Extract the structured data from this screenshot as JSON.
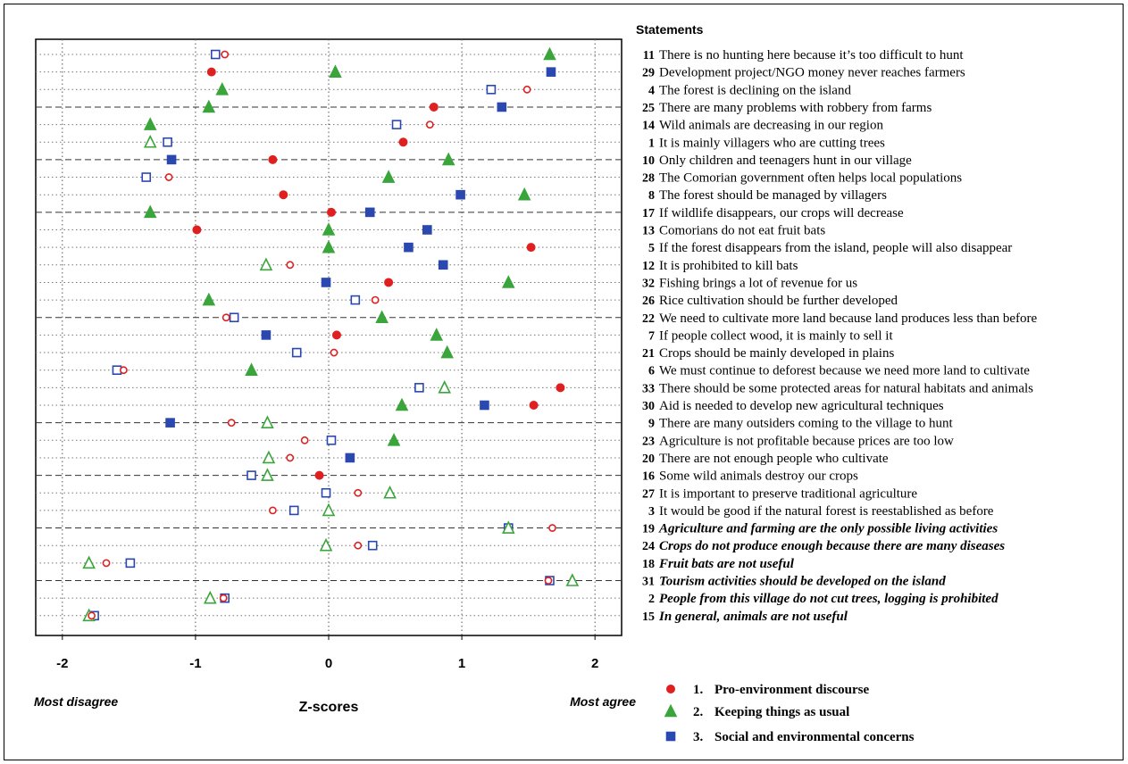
{
  "chart_data": {
    "type": "scatter",
    "xlabel": "Z-scores",
    "xlim": [
      -2.2,
      2.2
    ],
    "xticks": [
      -2,
      -1,
      0,
      1,
      2
    ],
    "xtick_labels": [
      "-2",
      "-1",
      "0",
      "1",
      "2"
    ],
    "axis_end_labels": {
      "left": "Most disagree",
      "right": "Most agree"
    },
    "statements_header": "Statements",
    "grid": "dotted vertical and horizontal lines; dashed separator lines",
    "legend_position": "bottom-right",
    "series": [
      {
        "number": "1.",
        "name": "Pro-environment discourse",
        "color": "#e02020",
        "marker": "circle"
      },
      {
        "number": "2.",
        "name": "Keeping things as usual",
        "color": "#3aa53a",
        "marker": "triangle"
      },
      {
        "number": "3.",
        "name": "Social and environmental concerns",
        "color": "#2a48b0",
        "marker": "square"
      }
    ],
    "statements": [
      {
        "number": "11",
        "text": "There is no hunting here because it’s too difficult to hunt",
        "emph": false,
        "values": [
          -0.78,
          1.66,
          -0.85
        ],
        "filled": [
          false,
          true,
          false
        ]
      },
      {
        "number": "29",
        "text": "Development project/NGO money never reaches farmers",
        "emph": false,
        "values": [
          -0.88,
          0.05,
          1.67
        ],
        "filled": [
          true,
          true,
          true
        ]
      },
      {
        "number": "4",
        "text": "The forest is declining on the island",
        "emph": false,
        "values": [
          1.49,
          -0.8,
          1.22
        ],
        "filled": [
          false,
          true,
          false
        ]
      },
      {
        "number": "25",
        "text": "There are many problems with robbery from farms",
        "emph": false,
        "values": [
          0.79,
          -0.9,
          1.3
        ],
        "filled": [
          true,
          true,
          true
        ]
      },
      {
        "number": "14",
        "text": "Wild animals are decreasing in our region",
        "emph": false,
        "values": [
          0.76,
          -1.34,
          0.51
        ],
        "filled": [
          false,
          true,
          false
        ]
      },
      {
        "number": "1",
        "text": "It is mainly villagers who are cutting trees",
        "emph": false,
        "values": [
          0.56,
          -1.34,
          -1.21
        ],
        "filled": [
          true,
          false,
          false
        ]
      },
      {
        "number": "10",
        "text": "Only children and teenagers hunt in our village",
        "emph": false,
        "values": [
          -0.42,
          0.9,
          -1.18
        ],
        "filled": [
          true,
          true,
          true
        ]
      },
      {
        "number": "28",
        "text": "The Comorian government often helps local populations",
        "emph": false,
        "values": [
          -1.2,
          0.45,
          -1.37
        ],
        "filled": [
          false,
          true,
          false
        ]
      },
      {
        "number": "8",
        "text": "The forest should be managed by villagers",
        "emph": false,
        "values": [
          -0.34,
          1.47,
          0.99
        ],
        "filled": [
          true,
          true,
          true
        ]
      },
      {
        "number": "17",
        "text": "If wildlife disappears, our crops will decrease",
        "emph": false,
        "values": [
          0.02,
          -1.34,
          0.31
        ],
        "filled": [
          true,
          true,
          true
        ]
      },
      {
        "number": "13",
        "text": "Comorians do not eat fruit bats",
        "emph": false,
        "values": [
          -0.99,
          0.0,
          0.74
        ],
        "filled": [
          true,
          true,
          true
        ]
      },
      {
        "number": "5",
        "text": "If the forest disappears from the island, people will also disappear",
        "emph": false,
        "values": [
          1.52,
          0.0,
          0.6
        ],
        "filled": [
          true,
          true,
          true
        ]
      },
      {
        "number": "12",
        "text": "It is prohibited to kill bats",
        "emph": false,
        "values": [
          -0.29,
          -0.47,
          0.86
        ],
        "filled": [
          false,
          false,
          true
        ]
      },
      {
        "number": "32",
        "text": "Fishing brings a lot of revenue for us",
        "emph": false,
        "values": [
          0.45,
          1.35,
          -0.02
        ],
        "filled": [
          true,
          true,
          true
        ]
      },
      {
        "number": "26",
        "text": "Rice cultivation should be further developed",
        "emph": false,
        "values": [
          0.35,
          -0.9,
          0.2
        ],
        "filled": [
          false,
          true,
          false
        ]
      },
      {
        "number": "22",
        "text": "We need to cultivate more land because land produces less than before",
        "emph": false,
        "values": [
          -0.77,
          0.4,
          -0.71
        ],
        "filled": [
          false,
          true,
          false
        ]
      },
      {
        "number": "7",
        "text": "If people collect wood, it is mainly to sell it",
        "emph": false,
        "values": [
          0.06,
          0.81,
          -0.47
        ],
        "filled": [
          true,
          true,
          true
        ]
      },
      {
        "number": "21",
        "text": "Crops should be mainly developed in plains",
        "emph": false,
        "values": [
          0.04,
          0.89,
          -0.24
        ],
        "filled": [
          false,
          true,
          false
        ]
      },
      {
        "number": "6",
        "text": "We must continue to deforest because we need more land to cultivate",
        "emph": false,
        "values": [
          -1.54,
          -0.58,
          -1.59
        ],
        "filled": [
          false,
          true,
          false
        ]
      },
      {
        "number": "33",
        "text": "There should be some protected areas for natural habitats and animals",
        "emph": false,
        "values": [
          1.74,
          0.87,
          0.68
        ],
        "filled": [
          true,
          false,
          false
        ]
      },
      {
        "number": "30",
        "text": "Aid is needed to develop new agricultural techniques",
        "emph": false,
        "values": [
          1.54,
          0.55,
          1.17
        ],
        "filled": [
          true,
          true,
          true
        ]
      },
      {
        "number": "9",
        "text": "There are many outsiders coming to the village to hunt",
        "emph": false,
        "values": [
          -0.73,
          -0.46,
          -1.19
        ],
        "filled": [
          false,
          false,
          true
        ]
      },
      {
        "number": "23",
        "text": "Agriculture is not profitable because prices are too low",
        "emph": false,
        "values": [
          -0.18,
          0.49,
          0.02
        ],
        "filled": [
          false,
          true,
          false
        ]
      },
      {
        "number": "20",
        "text": "There are not enough people who cultivate",
        "emph": false,
        "values": [
          -0.29,
          -0.45,
          0.16
        ],
        "filled": [
          false,
          false,
          true
        ]
      },
      {
        "number": "16",
        "text": "Some wild animals destroy our crops",
        "emph": false,
        "values": [
          -0.07,
          -0.46,
          -0.58
        ],
        "filled": [
          true,
          false,
          false
        ]
      },
      {
        "number": "27",
        "text": "It is important to preserve traditional agriculture",
        "emph": false,
        "values": [
          0.22,
          0.46,
          -0.02
        ],
        "filled": [
          false,
          false,
          false
        ]
      },
      {
        "number": "3",
        "text": "It would be good if the natural forest is reestablished as before",
        "emph": false,
        "values": [
          -0.42,
          0.0,
          -0.26
        ],
        "filled": [
          false,
          false,
          false
        ]
      },
      {
        "number": "19",
        "text": "Agriculture and farming are the only possible living activities",
        "emph": true,
        "values": [
          1.68,
          1.35,
          1.35
        ],
        "filled": [
          false,
          false,
          false
        ]
      },
      {
        "number": "24",
        "text": "Crops do not produce enough because there are many diseases",
        "emph": true,
        "values": [
          0.22,
          -0.02,
          0.33
        ],
        "filled": [
          false,
          false,
          false
        ]
      },
      {
        "number": "18",
        "text": "Fruit bats are not useful",
        "emph": true,
        "values": [
          -1.67,
          -1.8,
          -1.49
        ],
        "filled": [
          false,
          false,
          false
        ]
      },
      {
        "number": "31",
        "text": "Tourism activities should be developed on the island",
        "emph": true,
        "values": [
          1.65,
          1.83,
          1.66
        ],
        "filled": [
          false,
          false,
          false
        ]
      },
      {
        "number": "2",
        "text": "People from this village do not cut trees, logging is prohibited",
        "emph": true,
        "values": [
          -0.79,
          -0.89,
          -0.78
        ],
        "filled": [
          false,
          false,
          false
        ]
      },
      {
        "number": "15",
        "text": "In general, animals are not useful",
        "emph": true,
        "values": [
          -1.78,
          -1.8,
          -1.76
        ],
        "filled": [
          false,
          false,
          false
        ]
      }
    ],
    "dashed_separators_after_rows": [
      3,
      6,
      9,
      15,
      21,
      24,
      27,
      30
    ]
  }
}
